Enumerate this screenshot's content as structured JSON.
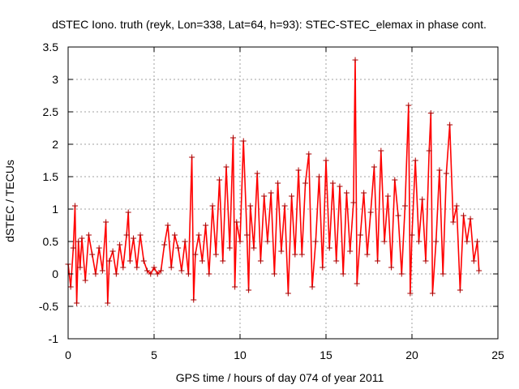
{
  "chart_data": {
    "type": "line",
    "title": "dSTEC Iono. truth (reyk, Lon=338, Lat=64, h=93): STEC-STEC_elemax in phase cont.",
    "xlabel": "GPS time / hours of day 074 of year 2011",
    "ylabel": "dSTEC  / TECUs",
    "xlim": [
      0,
      25
    ],
    "ylim": [
      -1,
      3.5
    ],
    "xticks": [
      0,
      5,
      10,
      15,
      20,
      25
    ],
    "yticks": [
      -1,
      -0.5,
      0,
      0.5,
      1,
      1.5,
      2,
      2.5,
      3,
      3.5
    ],
    "xtick_labels": [
      "0",
      "5",
      "10",
      "15",
      "20",
      "25"
    ],
    "ytick_labels": [
      "-1",
      "-0.5",
      "0",
      "0.5",
      "1",
      "1.5",
      "2",
      "2.5",
      "3",
      "3.5"
    ],
    "grid": true,
    "marker": "+",
    "series_color": "#ff0000",
    "marker_color": "#aa0000",
    "series": [
      {
        "x": [
          0.0,
          0.15,
          0.3,
          0.4,
          0.5,
          0.6,
          0.7,
          0.8,
          1.0,
          1.2,
          1.4,
          1.6,
          1.8,
          2.0,
          2.2,
          2.3,
          2.4,
          2.6,
          2.8,
          3.0,
          3.2,
          3.4,
          3.5,
          3.6,
          3.8,
          4.0,
          4.2,
          4.4,
          4.6,
          4.8,
          5.0,
          5.2,
          5.4,
          5.6,
          5.8,
          6.0,
          6.2,
          6.4,
          6.6,
          6.8,
          7.0,
          7.2,
          7.3,
          7.4,
          7.6,
          7.8,
          8.0,
          8.2,
          8.4,
          8.6,
          8.8,
          9.0,
          9.2,
          9.4,
          9.6,
          9.7,
          9.8,
          10.0,
          10.2,
          10.4,
          10.5,
          10.6,
          10.8,
          11.0,
          11.2,
          11.4,
          11.6,
          11.8,
          12.0,
          12.2,
          12.4,
          12.6,
          12.8,
          13.0,
          13.2,
          13.4,
          13.6,
          13.8,
          14.0,
          14.2,
          14.4,
          14.6,
          14.8,
          15.0,
          15.2,
          15.4,
          15.6,
          15.8,
          16.0,
          16.2,
          16.4,
          16.6,
          16.7,
          16.8,
          17.0,
          17.2,
          17.4,
          17.6,
          17.8,
          18.0,
          18.2,
          18.4,
          18.6,
          18.8,
          19.0,
          19.2,
          19.4,
          19.6,
          19.8,
          19.9,
          20.0,
          20.2,
          20.4,
          20.6,
          20.8,
          21.0,
          21.1,
          21.2,
          21.4,
          21.6,
          21.8,
          22.0,
          22.2,
          22.4,
          22.6,
          22.8,
          23.0,
          23.2,
          23.4,
          23.6,
          23.8,
          23.9
        ],
        "y": [
          0.15,
          -0.2,
          0.4,
          1.05,
          -0.45,
          0.5,
          0.1,
          0.55,
          -0.1,
          0.6,
          0.3,
          0.0,
          0.4,
          0.05,
          0.8,
          -0.45,
          0.2,
          0.35,
          0.0,
          0.45,
          0.1,
          0.6,
          0.95,
          0.2,
          0.55,
          0.1,
          0.6,
          0.2,
          0.05,
          0.0,
          0.1,
          0.0,
          0.05,
          0.45,
          0.75,
          0.1,
          0.6,
          0.4,
          0.05,
          0.5,
          0.0,
          1.8,
          -0.4,
          0.3,
          0.6,
          0.2,
          0.75,
          0.0,
          1.05,
          0.3,
          1.45,
          0.2,
          1.65,
          0.4,
          2.1,
          -0.2,
          0.8,
          0.5,
          2.05,
          0.6,
          -0.25,
          1.05,
          0.4,
          1.55,
          0.2,
          1.2,
          0.5,
          1.25,
          0.0,
          1.4,
          0.35,
          1.05,
          -0.3,
          1.2,
          0.3,
          1.6,
          0.3,
          1.4,
          1.85,
          -0.2,
          0.5,
          1.5,
          0.1,
          1.75,
          0.4,
          1.4,
          0.2,
          1.35,
          0.0,
          1.25,
          0.35,
          1.1,
          3.3,
          -0.15,
          0.6,
          1.25,
          0.3,
          0.95,
          1.65,
          0.2,
          1.9,
          0.5,
          1.2,
          0.1,
          1.45,
          0.9,
          0.0,
          1.05,
          2.6,
          -0.3,
          0.6,
          1.75,
          0.5,
          1.15,
          0.2,
          1.9,
          2.48,
          -0.3,
          0.5,
          1.6,
          0.0,
          1.55,
          2.3,
          0.8,
          1.05,
          -0.25,
          0.9,
          0.5,
          0.85,
          0.2,
          0.5,
          0.05
        ]
      }
    ]
  }
}
